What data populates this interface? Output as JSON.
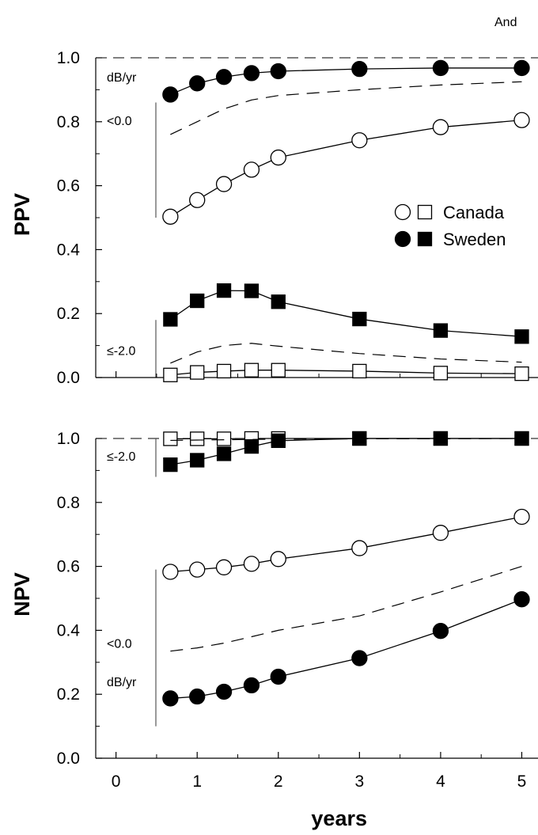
{
  "header_text": "And",
  "colors": {
    "foreground": "#000000",
    "background": "#ffffff",
    "open_marker_fill": "#ffffff",
    "filled_marker": "#000000"
  },
  "legend": {
    "placement": "upper-right of top panel",
    "entries": [
      {
        "label": "Canada",
        "markers": [
          "open-circle",
          "open-square"
        ]
      },
      {
        "label": "Sweden",
        "markers": [
          "filled-circle",
          "filled-square"
        ]
      }
    ]
  },
  "chart_data": [
    {
      "type": "line",
      "ylabel": "PPV",
      "xlabel": "",
      "ylim": [
        0,
        1
      ],
      "xlim": [
        -0.25,
        5.2
      ],
      "xticks": [
        0,
        1,
        2,
        3,
        4,
        5
      ],
      "yticks": [
        0.0,
        0.2,
        0.4,
        0.6,
        0.8,
        1.0
      ],
      "ytick_labels": [
        "0.0",
        "0.2",
        "0.4",
        "0.6",
        "0.8",
        "1.0"
      ],
      "reference_line": {
        "y": 1.0,
        "style": "dashed"
      },
      "group_annotations": [
        {
          "label": "dB/yr",
          "group": "<0.0",
          "bracket": [
            0.5,
            0.86
          ],
          "label_y": 0.94
        },
        {
          "label": "<0.0",
          "group": "<0.0",
          "label_y": 0.805
        },
        {
          "label": "≤-2.0",
          "group": "≤-2.0",
          "bracket": [
            0.0,
            0.18
          ],
          "label_y": 0.085
        }
      ],
      "series": [
        {
          "group": "<0.0",
          "country": "Sweden",
          "marker": "filled-circle",
          "x": [
            0.67,
            1.0,
            1.33,
            1.67,
            2.0,
            3.0,
            4.0,
            5.0
          ],
          "values": [
            0.885,
            0.92,
            0.94,
            0.952,
            0.958,
            0.965,
            0.968,
            0.968
          ]
        },
        {
          "group": "<0.0",
          "marker": "none",
          "dash": true,
          "x": [
            0.67,
            1.0,
            1.33,
            1.67,
            2.0,
            3.0,
            4.0,
            5.0
          ],
          "values": [
            0.76,
            0.8,
            0.84,
            0.868,
            0.882,
            0.9,
            0.915,
            0.925
          ]
        },
        {
          "group": "<0.0",
          "country": "Canada",
          "marker": "open-circle",
          "x": [
            0.67,
            1.0,
            1.33,
            1.67,
            2.0,
            3.0,
            4.0,
            5.0
          ],
          "values": [
            0.503,
            0.555,
            0.605,
            0.65,
            0.688,
            0.742,
            0.783,
            0.805
          ]
        },
        {
          "group": "≤-2.0",
          "country": "Sweden",
          "marker": "filled-square",
          "x": [
            0.67,
            1.0,
            1.33,
            1.67,
            2.0,
            3.0,
            4.0,
            5.0
          ],
          "values": [
            0.182,
            0.24,
            0.272,
            0.271,
            0.237,
            0.183,
            0.147,
            0.128
          ]
        },
        {
          "group": "≤-2.0",
          "marker": "none",
          "dash": true,
          "x": [
            0.67,
            1.0,
            1.33,
            1.67,
            2.0,
            3.0,
            4.0,
            5.0
          ],
          "values": [
            0.045,
            0.08,
            0.1,
            0.107,
            0.098,
            0.075,
            0.058,
            0.048
          ]
        },
        {
          "group": "≤-2.0",
          "country": "Canada",
          "marker": "open-square",
          "x": [
            0.67,
            1.0,
            1.33,
            1.67,
            2.0,
            3.0,
            4.0,
            5.0
          ],
          "values": [
            0.008,
            0.016,
            0.02,
            0.023,
            0.023,
            0.02,
            0.014,
            0.012
          ]
        }
      ]
    },
    {
      "type": "line",
      "ylabel": "NPV",
      "xlabel": "years",
      "ylim": [
        0,
        1
      ],
      "xlim": [
        -0.25,
        5.2
      ],
      "xticks": [
        0,
        1,
        2,
        3,
        4,
        5
      ],
      "xtick_labels": [
        "0",
        "1",
        "2",
        "3",
        "4",
        "5"
      ],
      "yticks": [
        0.0,
        0.2,
        0.4,
        0.6,
        0.8,
        1.0
      ],
      "ytick_labels": [
        "0.0",
        "0.2",
        "0.4",
        "0.6",
        "0.8",
        "1.0"
      ],
      "reference_line": {
        "y": 1.0,
        "style": "dashed"
      },
      "group_annotations": [
        {
          "label": "≤-2.0",
          "group": "≤-2.0",
          "bracket": [
            0.88,
            0.998
          ],
          "label_y": 0.945
        },
        {
          "label": "<0.0",
          "group": "<0.0",
          "bracket": [
            0.1,
            0.59
          ],
          "label_y": 0.36
        },
        {
          "label": "dB/yr",
          "group": "<0.0",
          "label_y": 0.24
        }
      ],
      "series": [
        {
          "group": "≤-2.0",
          "country": "Canada",
          "marker": "open-square",
          "x": [
            0.67,
            1.0,
            1.33,
            1.67,
            2.0,
            3.0,
            4.0,
            5.0
          ],
          "values": [
            0.999,
            0.999,
            0.999,
            1.0,
            1.0,
            1.0,
            1.0,
            1.0
          ]
        },
        {
          "group": "≤-2.0",
          "marker": "none",
          "dash": true,
          "x": [
            0.67,
            1.0,
            1.33,
            1.67,
            2.0,
            3.0,
            4.0,
            5.0
          ],
          "values": [
            0.994,
            0.995,
            0.996,
            0.997,
            0.998,
            0.999,
            0.999,
            1.0
          ]
        },
        {
          "group": "≤-2.0",
          "country": "Sweden",
          "marker": "filled-square",
          "x": [
            0.67,
            1.0,
            1.33,
            1.67,
            2.0,
            3.0,
            4.0,
            5.0
          ],
          "values": [
            0.918,
            0.932,
            0.952,
            0.975,
            0.993,
            1.0,
            1.0,
            1.0
          ]
        },
        {
          "group": "<0.0",
          "country": "Canada",
          "marker": "open-circle",
          "x": [
            0.67,
            1.0,
            1.33,
            1.67,
            2.0,
            3.0,
            4.0,
            5.0
          ],
          "values": [
            0.583,
            0.59,
            0.597,
            0.608,
            0.623,
            0.657,
            0.705,
            0.755
          ]
        },
        {
          "group": "<0.0",
          "marker": "none",
          "dash": true,
          "x": [
            0.67,
            1.0,
            1.33,
            1.67,
            2.0,
            3.0,
            4.0,
            5.0
          ],
          "values": [
            0.335,
            0.345,
            0.36,
            0.38,
            0.4,
            0.445,
            0.52,
            0.6
          ]
        },
        {
          "group": "<0.0",
          "country": "Sweden",
          "marker": "filled-circle",
          "x": [
            0.67,
            1.0,
            1.33,
            1.67,
            2.0,
            3.0,
            4.0,
            5.0
          ],
          "values": [
            0.187,
            0.193,
            0.208,
            0.228,
            0.255,
            0.313,
            0.398,
            0.497
          ]
        }
      ]
    }
  ]
}
